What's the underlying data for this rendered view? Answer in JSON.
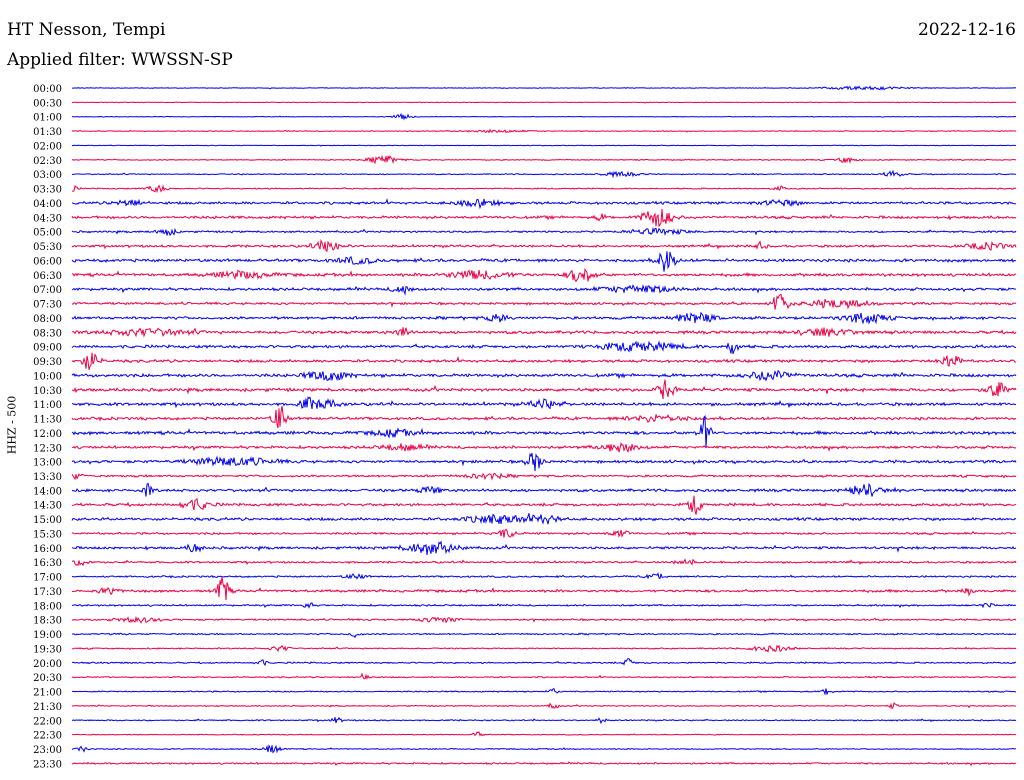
{
  "header": {
    "station": "HT Nesson, Tempi",
    "date": "2022-12-16",
    "filter": "Applied filter: WWSSN-SP"
  },
  "chart_data": {
    "type": "line",
    "ylabel": "HHZ - 500",
    "colors": {
      "even": "#0000ee",
      "odd": "#ee0044"
    },
    "rows": [
      {
        "label": "00:00",
        "noise": 0.3,
        "events": [
          [
            0.84,
            1.5,
            0.04
          ]
        ]
      },
      {
        "label": "00:30",
        "noise": 0.3,
        "events": []
      },
      {
        "label": "01:00",
        "noise": 0.3,
        "events": [
          [
            0.35,
            2.5,
            0.01
          ]
        ]
      },
      {
        "label": "01:30",
        "noise": 0.4,
        "events": [
          [
            0.45,
            1.2,
            0.03
          ]
        ]
      },
      {
        "label": "02:00",
        "noise": 0.3,
        "events": []
      },
      {
        "label": "02:30",
        "noise": 0.5,
        "events": [
          [
            0.33,
            4,
            0.015
          ],
          [
            0.82,
            2.5,
            0.01
          ]
        ]
      },
      {
        "label": "03:00",
        "noise": 0.5,
        "events": [
          [
            0.58,
            2,
            0.02
          ],
          [
            0.87,
            3,
            0.01
          ]
        ]
      },
      {
        "label": "03:30",
        "noise": 0.6,
        "events": [
          [
            0.0,
            3,
            0.005
          ],
          [
            0.09,
            3.5,
            0.01
          ],
          [
            0.75,
            2.5,
            0.005
          ]
        ]
      },
      {
        "label": "04:00",
        "noise": 1.2,
        "events": [
          [
            0.06,
            3,
            0.015
          ],
          [
            0.43,
            3.5,
            0.02
          ],
          [
            0.75,
            2.5,
            0.02
          ]
        ]
      },
      {
        "label": "04:30",
        "noise": 1.3,
        "events": [
          [
            0.62,
            9,
            0.015
          ],
          [
            0.56,
            3,
            0.005
          ]
        ]
      },
      {
        "label": "05:00",
        "noise": 0.9,
        "events": [
          [
            0.1,
            3.5,
            0.01
          ],
          [
            0.62,
            2.5,
            0.03
          ]
        ]
      },
      {
        "label": "05:30",
        "noise": 1.1,
        "events": [
          [
            0.27,
            5,
            0.015
          ],
          [
            0.73,
            4,
            0.005
          ],
          [
            0.97,
            3,
            0.02
          ]
        ]
      },
      {
        "label": "06:00",
        "noise": 1.4,
        "events": [
          [
            0.63,
            12,
            0.008
          ],
          [
            0.3,
            3,
            0.02
          ]
        ]
      },
      {
        "label": "06:30",
        "noise": 1.4,
        "events": [
          [
            0.54,
            8,
            0.012
          ],
          [
            0.43,
            4,
            0.03
          ],
          [
            0.18,
            3,
            0.03
          ]
        ]
      },
      {
        "label": "07:00",
        "noise": 1.3,
        "events": [
          [
            0.6,
            3,
            0.04
          ],
          [
            0.35,
            4,
            0.01
          ]
        ]
      },
      {
        "label": "07:30",
        "noise": 1.1,
        "events": [
          [
            0.75,
            12,
            0.008
          ],
          [
            0.81,
            4,
            0.03
          ]
        ]
      },
      {
        "label": "08:00",
        "noise": 1.3,
        "events": [
          [
            0.45,
            4,
            0.01
          ],
          [
            0.66,
            5,
            0.02
          ],
          [
            0.84,
            5,
            0.02
          ]
        ]
      },
      {
        "label": "08:30",
        "noise": 1.4,
        "events": [
          [
            0.08,
            3,
            0.04
          ],
          [
            0.35,
            8,
            0.005
          ],
          [
            0.8,
            3,
            0.03
          ]
        ]
      },
      {
        "label": "09:00",
        "noise": 1.4,
        "events": [
          [
            0.6,
            4,
            0.04
          ],
          [
            0.7,
            9,
            0.005
          ]
        ]
      },
      {
        "label": "09:30",
        "noise": 1.3,
        "events": [
          [
            0.02,
            10,
            0.008
          ],
          [
            0.93,
            7,
            0.01
          ]
        ]
      },
      {
        "label": "10:00",
        "noise": 1.5,
        "events": [
          [
            0.27,
            5,
            0.02
          ],
          [
            0.74,
            5,
            0.02
          ]
        ]
      },
      {
        "label": "10:30",
        "noise": 1.5,
        "events": [
          [
            0.63,
            10,
            0.008
          ],
          [
            0.98,
            7,
            0.01
          ]
        ]
      },
      {
        "label": "11:00",
        "noise": 1.4,
        "events": [
          [
            0.25,
            6,
            0.008
          ],
          [
            0.27,
            5,
            0.01
          ],
          [
            0.5,
            4,
            0.015
          ]
        ]
      },
      {
        "label": "11:30",
        "noise": 1.3,
        "events": [
          [
            0.22,
            16,
            0.006
          ],
          [
            0.62,
            3,
            0.03
          ]
        ]
      },
      {
        "label": "12:00",
        "noise": 1.5,
        "events": [
          [
            0.67,
            16,
            0.006
          ],
          [
            0.34,
            3,
            0.02
          ]
        ]
      },
      {
        "label": "12:30",
        "noise": 1.3,
        "events": [
          [
            0.58,
            4,
            0.02
          ],
          [
            0.35,
            3,
            0.02
          ]
        ]
      },
      {
        "label": "13:00",
        "noise": 1.3,
        "events": [
          [
            0.49,
            9,
            0.008
          ],
          [
            0.17,
            4,
            0.04
          ]
        ]
      },
      {
        "label": "13:30",
        "noise": 1.0,
        "events": [
          [
            0.0,
            3,
            0.01
          ],
          [
            0.44,
            2.5,
            0.02
          ]
        ]
      },
      {
        "label": "14:00",
        "noise": 1.3,
        "events": [
          [
            0.08,
            6,
            0.005
          ],
          [
            0.38,
            4,
            0.01
          ],
          [
            0.84,
            6,
            0.015
          ]
        ]
      },
      {
        "label": "14:30",
        "noise": 1.3,
        "events": [
          [
            0.13,
            5,
            0.015
          ],
          [
            0.66,
            10,
            0.006
          ]
        ]
      },
      {
        "label": "15:00",
        "noise": 1.3,
        "events": [
          [
            0.45,
            4,
            0.03
          ],
          [
            0.5,
            4,
            0.015
          ]
        ]
      },
      {
        "label": "15:30",
        "noise": 1.0,
        "events": [
          [
            0.46,
            4,
            0.01
          ],
          [
            0.58,
            3,
            0.01
          ]
        ]
      },
      {
        "label": "16:00",
        "noise": 1.2,
        "events": [
          [
            0.38,
            6,
            0.025
          ],
          [
            0.13,
            4,
            0.008
          ]
        ]
      },
      {
        "label": "16:30",
        "noise": 0.9,
        "events": [
          [
            0.01,
            3,
            0.01
          ],
          [
            0.65,
            3,
            0.01
          ]
        ]
      },
      {
        "label": "17:00",
        "noise": 0.8,
        "events": [
          [
            0.3,
            2.5,
            0.01
          ],
          [
            0.62,
            2.5,
            0.01
          ]
        ]
      },
      {
        "label": "17:30",
        "noise": 1.2,
        "events": [
          [
            0.16,
            14,
            0.006
          ],
          [
            0.04,
            3,
            0.01
          ],
          [
            0.95,
            3,
            0.005
          ]
        ]
      },
      {
        "label": "18:00",
        "noise": 0.8,
        "events": [
          [
            0.25,
            3,
            0.005
          ],
          [
            0.97,
            3,
            0.005
          ]
        ]
      },
      {
        "label": "18:30",
        "noise": 0.8,
        "events": [
          [
            0.07,
            2.5,
            0.02
          ],
          [
            0.39,
            2.5,
            0.02
          ]
        ]
      },
      {
        "label": "19:00",
        "noise": 0.7,
        "events": [
          [
            0.3,
            3,
            0.005
          ]
        ]
      },
      {
        "label": "19:30",
        "noise": 0.6,
        "events": [
          [
            0.22,
            2.5,
            0.01
          ],
          [
            0.74,
            3,
            0.02
          ]
        ]
      },
      {
        "label": "20:00",
        "noise": 0.7,
        "events": [
          [
            0.2,
            4,
            0.005
          ],
          [
            0.59,
            4,
            0.005
          ]
        ]
      },
      {
        "label": "20:30",
        "noise": 0.6,
        "events": [
          [
            0.31,
            4,
            0.005
          ]
        ]
      },
      {
        "label": "21:00",
        "noise": 0.6,
        "events": [
          [
            0.51,
            3,
            0.005
          ],
          [
            0.8,
            4,
            0.005
          ]
        ]
      },
      {
        "label": "21:30",
        "noise": 0.5,
        "events": [
          [
            0.51,
            3,
            0.005
          ],
          [
            0.87,
            2.5,
            0.005
          ]
        ]
      },
      {
        "label": "22:00",
        "noise": 0.6,
        "events": [
          [
            0.28,
            3,
            0.005
          ],
          [
            0.56,
            2.5,
            0.005
          ]
        ]
      },
      {
        "label": "22:30",
        "noise": 0.4,
        "events": [
          [
            0.43,
            2.5,
            0.005
          ]
        ]
      },
      {
        "label": "23:00",
        "noise": 0.5,
        "events": [
          [
            0.01,
            3,
            0.005
          ],
          [
            0.21,
            4,
            0.01
          ]
        ]
      },
      {
        "label": "23:30",
        "noise": 0.8,
        "events": []
      }
    ]
  }
}
